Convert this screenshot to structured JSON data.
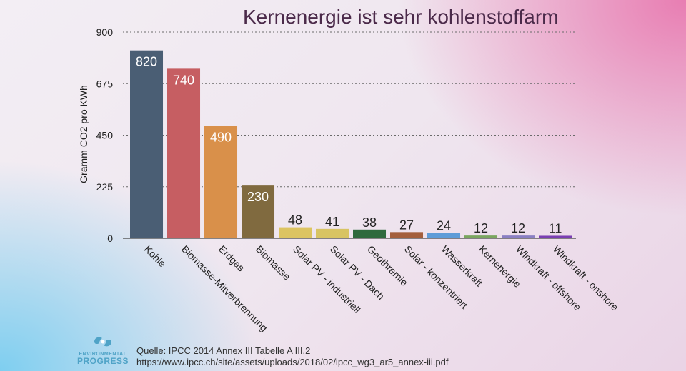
{
  "chart_data": {
    "type": "bar",
    "title": "Kernenergie ist sehr kohlenstoffarm",
    "ylabel": "Gramm CO2 pro KWh",
    "xlabel": "",
    "ylim": [
      0,
      900
    ],
    "yticks": [
      0,
      225,
      450,
      675,
      900
    ],
    "grid": true,
    "categories": [
      "Kohle",
      "Biomasse-Mitverbrennung",
      "Erdgas",
      "Biomasse",
      "Solar PV - industriell",
      "Solar PV - Dach",
      "Geothremie",
      "Solar - konzentriert",
      "Wasserkraft",
      "Kernenergie",
      "Windkraft - offshore",
      "Windkraft - onshore"
    ],
    "values": [
      820,
      740,
      490,
      230,
      48,
      41,
      38,
      27,
      24,
      12,
      12,
      11
    ],
    "colors": [
      "#4a5e74",
      "#c65e62",
      "#d9904a",
      "#806a3f",
      "#dcc461",
      "#d8c463",
      "#2e6a3d",
      "#a45f3d",
      "#5e9cd8",
      "#7aa65f",
      "#8a7fc3",
      "#7a3fb2"
    ]
  },
  "logo": {
    "line1": "ENVIRONMENTAL",
    "line2": "PROGRESS",
    "icon": "recycle-leaf-icon",
    "color": "#4fa3c7"
  },
  "source": {
    "line1": "Quelle: IPCC 2014 Annex III Tabelle A III.2",
    "line2": "https://www.ipcc.ch/site/assets/uploads/2018/02/ipcc_wg3_ar5_annex-iii.pdf"
  }
}
